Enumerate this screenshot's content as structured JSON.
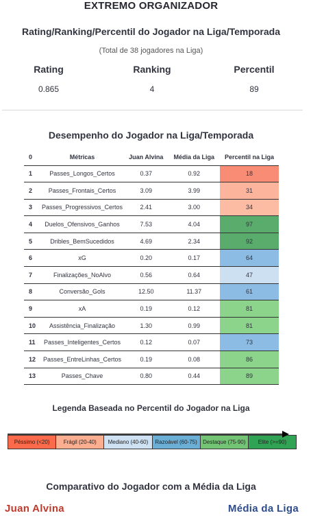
{
  "header": {
    "title": "EXTREMO ORGANIZADOR",
    "subtitle": "Rating/Ranking/Percentil do Jogador na Liga/Temporada",
    "note": "(Total de 38 jogadores na Liga)"
  },
  "metrics": [
    {
      "label": "Rating",
      "value": "0.865"
    },
    {
      "label": "Ranking",
      "value": "4"
    },
    {
      "label": "Percentil",
      "value": "89"
    }
  ],
  "table": {
    "title": "Desempenho do Jogador na Liga/Temporada",
    "columns": [
      "0",
      "Métricas",
      "Juan Alvina",
      "Média da Liga",
      "Percentil na Liga"
    ],
    "rows": [
      {
        "idx": "1",
        "metric": "Passes_Longos_Certos",
        "player": "0.37",
        "league": "0.92",
        "pct": "18",
        "color": "#f98c74"
      },
      {
        "idx": "2",
        "metric": "Passes_Frontais_Certos",
        "player": "3.09",
        "league": "3.99",
        "pct": "31",
        "color": "#fcb49c"
      },
      {
        "idx": "3",
        "metric": "Passes_Progressivos_Certos",
        "player": "2.41",
        "league": "3.00",
        "pct": "34",
        "color": "#fcbca4"
      },
      {
        "idx": "4",
        "metric": "Duelos_Ofensivos_Ganhos",
        "player": "7.53",
        "league": "4.04",
        "pct": "97",
        "color": "#5aac6c"
      },
      {
        "idx": "5",
        "metric": "Dribles_BemSucedidos",
        "player": "4.69",
        "league": "2.34",
        "pct": "92",
        "color": "#5aac6c"
      },
      {
        "idx": "6",
        "metric": "xG",
        "player": "0.20",
        "league": "0.17",
        "pct": "64",
        "color": "#8cbce4"
      },
      {
        "idx": "7",
        "metric": "Finalizações_NoAlvo",
        "player": "0.56",
        "league": "0.64",
        "pct": "47",
        "color": "#cce0f2"
      },
      {
        "idx": "8",
        "metric": "Conversão_Gols",
        "player": "12.50",
        "league": "11.37",
        "pct": "61",
        "color": "#8cbce4"
      },
      {
        "idx": "9",
        "metric": "xA",
        "player": "0.19",
        "league": "0.12",
        "pct": "81",
        "color": "#8cd38c"
      },
      {
        "idx": "10",
        "metric": "Assistência_Finalização",
        "player": "1.30",
        "league": "0.99",
        "pct": "81",
        "color": "#8cd38c"
      },
      {
        "idx": "11",
        "metric": "Passes_Inteligentes_Certos",
        "player": "0.12",
        "league": "0.07",
        "pct": "73",
        "color": "#8cbce4"
      },
      {
        "idx": "12",
        "metric": "Passes_EntreLinhas_Certos",
        "player": "0.19",
        "league": "0.08",
        "pct": "86",
        "color": "#8cd38c"
      },
      {
        "idx": "13",
        "metric": "Passes_Chave",
        "player": "0.80",
        "league": "0.44",
        "pct": "89",
        "color": "#8cd38c"
      }
    ]
  },
  "legend": {
    "title": "Legenda Baseada no Percentil do Jogador na Liga",
    "segments": [
      {
        "label": "Péssimo (<20)",
        "color": "#fb6a4a"
      },
      {
        "label": "Frágil (20-40)",
        "color": "#fcae91"
      },
      {
        "label": "Mediano (40-60)",
        "color": "#cfe2f3"
      },
      {
        "label": "Razoável (60-75)",
        "color": "#6baed6"
      },
      {
        "label": "Destaque (75-90)",
        "color": "#74c476"
      },
      {
        "label": "Elite (>=90)",
        "color": "#31a354"
      }
    ]
  },
  "comparison": {
    "title": "Comparativo do Jogador com a Média da Liga",
    "player": "Juan Alvina",
    "league": "Média da Liga",
    "player_color": "#c0392b",
    "league_color": "#2e4c8c"
  }
}
